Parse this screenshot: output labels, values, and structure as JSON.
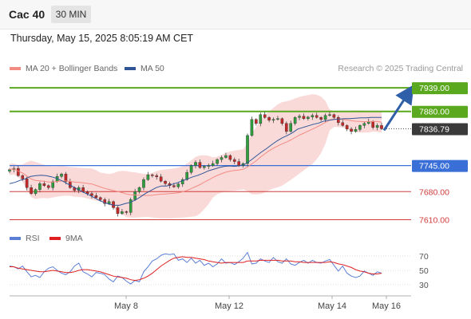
{
  "header": {
    "symbol": "Cac 40",
    "timeframe": "30 MIN"
  },
  "datetime": "Thursday, May 15, 2025 8:05:19 AM CET",
  "legend": {
    "ma20": {
      "label": "MA 20 + Bollinger Bands",
      "color": "#f28b82"
    },
    "ma50": {
      "label": "MA 50",
      "color": "#2f5597"
    },
    "rsi": {
      "label": "RSI",
      "color": "#5b7fd6"
    },
    "rsi_ma": {
      "label": "9MA",
      "color": "#e02020"
    }
  },
  "credit": "Research © 2025 Trading Central",
  "colors": {
    "up": "#2e9e3e",
    "down": "#c62828",
    "resistance": "#5aa81e",
    "support": "#3a6fd8",
    "target": "#d23b3b",
    "arrow": "#2f5fa8",
    "current": "#3a3a3a"
  },
  "chart_data": [
    {
      "type": "line",
      "name": "price",
      "ylim": [
        7595,
        7965
      ],
      "x_ticks": [
        "May 8",
        "May 12",
        "May 14",
        "May 16"
      ],
      "levels": [
        {
          "value": 7939.0,
          "label": "7939.00",
          "kind": "resistance"
        },
        {
          "value": 7880.0,
          "label": "7880.00",
          "kind": "resistance"
        },
        {
          "value": 7836.79,
          "label": "7836.79",
          "kind": "current"
        },
        {
          "value": 7745.0,
          "label": "7745.00",
          "kind": "support"
        },
        {
          "value": 7680.0,
          "label": "7680.00",
          "kind": "target"
        },
        {
          "value": 7610.0,
          "label": "7610.00",
          "kind": "target"
        }
      ],
      "close": [
        7735,
        7738,
        7720,
        7712,
        7690,
        7675,
        7685,
        7700,
        7695,
        7690,
        7705,
        7718,
        7724,
        7705,
        7690,
        7683,
        7690,
        7680,
        7675,
        7670,
        7665,
        7660,
        7650,
        7655,
        7640,
        7625,
        7630,
        7628,
        7660,
        7680,
        7690,
        7710,
        7722,
        7720,
        7717,
        7706,
        7700,
        7695,
        7692,
        7699,
        7710,
        7728,
        7745,
        7753,
        7740,
        7743,
        7745,
        7750,
        7760,
        7765,
        7770,
        7760,
        7755,
        7745,
        7750,
        7820,
        7860,
        7850,
        7872,
        7865,
        7858,
        7860,
        7862,
        7850,
        7830,
        7850,
        7865,
        7868,
        7862,
        7866,
        7870,
        7865,
        7860,
        7870,
        7872,
        7865,
        7852,
        7845,
        7836,
        7830,
        7835,
        7845,
        7850,
        7855,
        7840,
        7845,
        7836.79
      ],
      "ma50": [
        7700,
        7703,
        7708,
        7712,
        7718,
        7720,
        7721,
        7720,
        7717,
        7713,
        7707,
        7700,
        7693,
        7686,
        7679,
        7673,
        7666,
        7659,
        7653,
        7649,
        7646,
        7646,
        7650,
        7653,
        7659,
        7667,
        7676,
        7683,
        7690,
        7694,
        7694,
        7698,
        7702,
        7707,
        7712,
        7717,
        7721,
        7726,
        7732,
        7736,
        7740,
        7743,
        7744,
        7743,
        7745,
        7749,
        7758,
        7768,
        7778,
        7787,
        7797,
        7806,
        7814,
        7820,
        7827,
        7836,
        7840,
        7844,
        7848,
        7851,
        7856,
        7858,
        7860,
        7861,
        7862,
        7862,
        7863,
        7864,
        7864,
        7865,
        7865,
        7865
      ]
    },
    {
      "type": "line",
      "name": "RSI",
      "ylim": [
        20,
        80
      ],
      "y_ticks": [
        70,
        50,
        30
      ],
      "rsi": [
        56,
        55,
        52,
        56,
        48,
        41,
        43,
        40,
        48,
        53,
        55,
        50,
        46,
        44,
        48,
        56,
        60,
        48,
        45,
        41,
        47,
        46,
        44,
        38,
        34,
        42,
        40,
        35,
        31,
        36,
        34,
        48,
        55,
        63,
        66,
        71,
        73,
        72,
        73,
        64,
        66,
        61,
        67,
        60,
        64,
        57,
        60,
        55,
        59,
        66,
        60,
        61,
        58,
        62,
        67,
        75,
        59,
        60,
        66,
        63,
        61,
        68,
        62,
        60,
        66,
        59,
        57,
        61,
        64,
        60,
        64,
        61,
        60,
        63,
        65,
        57,
        49,
        56,
        46,
        42,
        40,
        42,
        49,
        46,
        43,
        48,
        46
      ],
      "rsi_ma": [
        55,
        55,
        53,
        52,
        51,
        50,
        49,
        48,
        48,
        49,
        50,
        49,
        48,
        47,
        47,
        48,
        50,
        51,
        51,
        50,
        49,
        48,
        46,
        44,
        42,
        41,
        40,
        39,
        37,
        36,
        37,
        39,
        42,
        46,
        51,
        56,
        60,
        64,
        67,
        68,
        69,
        68,
        68,
        67,
        66,
        65,
        63,
        62,
        61,
        60,
        61,
        61,
        61,
        61,
        61,
        63,
        63,
        63,
        64,
        64,
        64,
        64,
        64,
        63,
        63,
        63,
        62,
        62,
        61,
        61,
        61,
        61,
        61,
        61,
        62,
        61,
        59,
        58,
        56,
        54,
        51,
        49,
        48,
        46,
        45,
        45,
        46
      ]
    }
  ]
}
